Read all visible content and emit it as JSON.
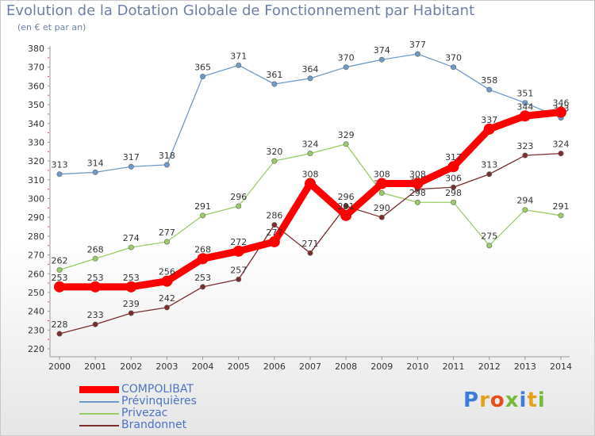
{
  "title": "Evolution de la Dotation Globale de Fonctionnement par Habitant",
  "subtitle": "(en € et par an)",
  "logo_text": "Proxiti",
  "chart_data": {
    "type": "line",
    "x": [
      "2000",
      "2001",
      "2002",
      "2003",
      "2004",
      "2005",
      "2006",
      "2007",
      "2008",
      "2009",
      "2010",
      "2011",
      "2012",
      "2013",
      "2014"
    ],
    "ylim": [
      220,
      380
    ],
    "yticks": [
      220,
      230,
      240,
      250,
      260,
      270,
      280,
      290,
      300,
      310,
      320,
      330,
      340,
      350,
      360,
      370,
      380
    ],
    "grid": false,
    "legend_position": "bottom-left",
    "series": [
      {
        "name": "COMPOLIBAT",
        "color": "#ff0000",
        "values": [
          253,
          253,
          253,
          256,
          268,
          272,
          277,
          308,
          291,
          308,
          308,
          317,
          337,
          344,
          346
        ]
      },
      {
        "name": "Prévinquières",
        "color": "#6d9ac7",
        "values": [
          313,
          314,
          317,
          318,
          365,
          371,
          361,
          364,
          370,
          374,
          377,
          370,
          358,
          351,
          343
        ]
      },
      {
        "name": "Privezac",
        "color": "#99cc66",
        "values": [
          262,
          268,
          274,
          277,
          291,
          296,
          320,
          324,
          329,
          303,
          298,
          298,
          275,
          294,
          291
        ]
      },
      {
        "name": "Brandonnet",
        "color": "#7b2c2c",
        "values": [
          228,
          233,
          239,
          242,
          253,
          257,
          286,
          271,
          296,
          290,
          305,
          306,
          313,
          323,
          324
        ]
      }
    ]
  }
}
